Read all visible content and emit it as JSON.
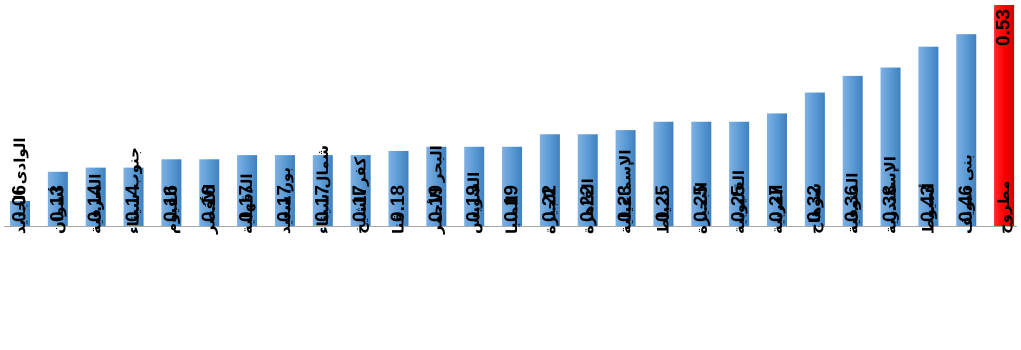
{
  "chart_data": {
    "type": "bar",
    "title": "",
    "xlabel": "",
    "ylabel": "",
    "ylim": [
      0,
      0.55
    ],
    "grid": false,
    "legend": "none",
    "categories": [
      "الوادى الجديد",
      "أسوان",
      "الشرقية",
      "جنوب سيناء",
      "الفيوم",
      "الأقصر",
      "الدقهلية",
      "بور سعيد",
      "شمال سيناء",
      "كفر الشيخ",
      "قنا",
      "البحر الأحمر",
      "السويس",
      "المنيا",
      "الجيزة",
      "القاهرة",
      "الإسماعيلية",
      "دمياط",
      "البحيرة",
      "القليوبية",
      "الغربية",
      "سوهاج",
      "المنوفية",
      "الإسكندرية",
      "أسيوط",
      "بنى سويف",
      "مطروح"
    ],
    "values": [
      0.06,
      0.13,
      0.14,
      0.14,
      0.16,
      0.16,
      0.17,
      0.17,
      0.17,
      0.17,
      0.18,
      0.19,
      0.19,
      0.19,
      0.22,
      0.22,
      0.23,
      0.25,
      0.25,
      0.25,
      0.27,
      0.32,
      0.36,
      0.38,
      0.43,
      0.46,
      0.53
    ],
    "value_labels": [
      "0.06",
      "0.13",
      "0.14",
      "0.14",
      "0.16",
      "0.16",
      "0.17",
      "0.17",
      "0.17",
      "0.17",
      "0.18",
      "0.19",
      "0.19",
      "0.19",
      "0.22",
      "0.22",
      "0.23",
      "0.25",
      "0.25",
      "0.25",
      "0.27",
      "0.32",
      "0.36",
      "0.38",
      "0.43",
      "0.46",
      "0.53"
    ],
    "highlight_index": 26,
    "colors": {
      "bar": "#5b9bd5",
      "bar_dark": "#3a78b5",
      "highlight": "#ff0000",
      "highlight_dark": "#c00000",
      "axis": "#a6a6a6"
    }
  }
}
